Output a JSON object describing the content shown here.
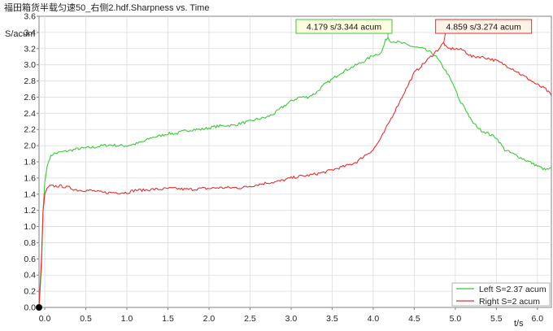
{
  "chart_data": {
    "type": "line",
    "title": "福田箱货半载匀速50_右侧2.hdf.Sharpness vs. Time",
    "ylabel": "S/acum",
    "xlabel": "t/s",
    "xlim": [
      -0.07,
      6.17
    ],
    "ylim": [
      0,
      3.6
    ],
    "xticks": [
      0.0,
      0.5,
      1.0,
      1.5,
      2.0,
      2.5,
      3.0,
      3.5,
      4.0,
      4.5,
      5.0,
      5.5,
      6.0
    ],
    "xtick_labels": [
      "0.0",
      "0.5",
      "1.0",
      "1.5",
      "2.0",
      "2.5",
      "3.0",
      "3.5",
      "4.0",
      "4.5",
      "5.0",
      "5.5",
      "6.0"
    ],
    "yticks": [
      0.0,
      0.2,
      0.4,
      0.6,
      0.8,
      1.0,
      1.2,
      1.4,
      1.6,
      1.8,
      2.0,
      2.2,
      2.4,
      2.6,
      2.8,
      3.0,
      3.2,
      3.4,
      3.6
    ],
    "ytick_labels": [
      "0.0",
      "0.2",
      "0.4",
      "0.6",
      "0.8",
      "1.0",
      "1.2",
      "1.4",
      "1.6",
      "1.8",
      "2.0",
      "2.2",
      "2.4",
      "2.6",
      "2.8",
      "3.0",
      "3.2",
      "3.4",
      "3.6"
    ],
    "grid": true,
    "legend_position": "bottom-right",
    "series": [
      {
        "name": "Left S=2.37 acum",
        "color": "#3cc83c",
        "x": [
          -0.07,
          -0.04,
          -0.02,
          0.0,
          0.03,
          0.06,
          0.1,
          0.2,
          0.3,
          0.4,
          0.5,
          0.6,
          0.7,
          0.8,
          0.9,
          1.0,
          1.1,
          1.2,
          1.3,
          1.4,
          1.5,
          1.6,
          1.7,
          1.8,
          1.9,
          2.0,
          2.1,
          2.2,
          2.3,
          2.4,
          2.5,
          2.6,
          2.7,
          2.8,
          2.9,
          3.0,
          3.1,
          3.2,
          3.3,
          3.4,
          3.5,
          3.6,
          3.7,
          3.8,
          3.9,
          4.0,
          4.05,
          4.1,
          4.15,
          4.179,
          4.2,
          4.3,
          4.4,
          4.5,
          4.6,
          4.7,
          4.75,
          4.8,
          4.9,
          4.95,
          5.0,
          5.05,
          5.1,
          5.2,
          5.3,
          5.4,
          5.5,
          5.6,
          5.7,
          5.8,
          5.9,
          6.0,
          6.1,
          6.17
        ],
        "y": [
          0.0,
          0.5,
          1.2,
          1.55,
          1.75,
          1.85,
          1.9,
          1.92,
          1.94,
          1.96,
          1.97,
          1.98,
          2.0,
          2.01,
          2.0,
          2.0,
          2.02,
          2.05,
          2.1,
          2.12,
          2.15,
          2.15,
          2.18,
          2.2,
          2.2,
          2.22,
          2.24,
          2.25,
          2.25,
          2.28,
          2.3,
          2.33,
          2.35,
          2.4,
          2.48,
          2.55,
          2.6,
          2.6,
          2.65,
          2.75,
          2.82,
          2.9,
          2.95,
          3.0,
          3.05,
          3.12,
          3.13,
          3.15,
          3.3,
          3.344,
          3.3,
          3.28,
          3.25,
          3.22,
          3.2,
          3.15,
          3.12,
          3.05,
          2.9,
          2.8,
          2.7,
          2.55,
          2.5,
          2.3,
          2.2,
          2.15,
          2.1,
          1.95,
          1.9,
          1.85,
          1.8,
          1.75,
          1.7,
          1.72
        ]
      },
      {
        "name": "Right S=2 acum",
        "color": "#e23030",
        "x": [
          -0.07,
          -0.04,
          -0.02,
          0.0,
          0.03,
          0.06,
          0.1,
          0.2,
          0.3,
          0.4,
          0.5,
          0.6,
          0.7,
          0.8,
          0.9,
          1.0,
          1.1,
          1.2,
          1.3,
          1.4,
          1.5,
          1.6,
          1.7,
          1.8,
          1.9,
          2.0,
          2.1,
          2.2,
          2.3,
          2.4,
          2.5,
          2.6,
          2.7,
          2.8,
          2.9,
          3.0,
          3.1,
          3.2,
          3.3,
          3.4,
          3.5,
          3.6,
          3.7,
          3.8,
          3.9,
          4.0,
          4.1,
          4.2,
          4.3,
          4.4,
          4.5,
          4.6,
          4.7,
          4.8,
          4.859,
          4.9,
          5.0,
          5.1,
          5.2,
          5.3,
          5.4,
          5.5,
          5.6,
          5.7,
          5.8,
          5.9,
          6.0,
          6.1,
          6.17
        ],
        "y": [
          0.0,
          0.6,
          1.2,
          1.4,
          1.48,
          1.5,
          1.5,
          1.5,
          1.48,
          1.45,
          1.45,
          1.44,
          1.42,
          1.42,
          1.42,
          1.42,
          1.45,
          1.45,
          1.46,
          1.46,
          1.47,
          1.47,
          1.46,
          1.46,
          1.47,
          1.47,
          1.48,
          1.48,
          1.48,
          1.48,
          1.5,
          1.52,
          1.54,
          1.55,
          1.57,
          1.6,
          1.62,
          1.63,
          1.65,
          1.67,
          1.7,
          1.73,
          1.76,
          1.8,
          1.88,
          1.95,
          2.1,
          2.3,
          2.5,
          2.7,
          2.9,
          3.0,
          3.1,
          3.2,
          3.274,
          3.2,
          3.2,
          3.18,
          3.1,
          3.1,
          3.08,
          3.05,
          3.0,
          2.95,
          2.88,
          2.82,
          2.75,
          2.7,
          2.62
        ]
      }
    ],
    "annotations": [
      {
        "text": "4.179 s/3.344 acum",
        "x": 4.179,
        "y": 3.344,
        "series": 0,
        "bg": "#fffde0",
        "border": "#3cc83c"
      },
      {
        "text": "4.859 s/3.274 acum",
        "x": 4.859,
        "y": 3.274,
        "series": 1,
        "bg": "#fff2e6",
        "border": "#e23030"
      }
    ]
  }
}
